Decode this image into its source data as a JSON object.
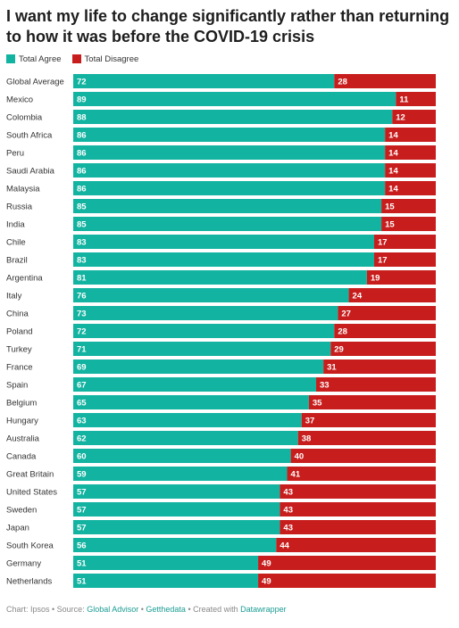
{
  "title": "I want my life to change significantly rather than returning to how it was before the COVID-19 crisis",
  "legend": [
    {
      "label": "Total Agree",
      "color": "#12b3a0"
    },
    {
      "label": "Total Disagree",
      "color": "#c71e1d"
    }
  ],
  "footer": {
    "prefix": "Chart: Ipsos • Source: ",
    "source1": "Global Advisor",
    "sep1": " • ",
    "source2": "Getthedata",
    "sep2": " • Created with ",
    "tool": "Datawrapper"
  },
  "chart_data": {
    "type": "bar",
    "orientation": "horizontal",
    "stacked": true,
    "title": "I want my life to change significantly rather than returning to how it was before the COVID-19 crisis",
    "xlim": [
      0,
      100
    ],
    "grid": false,
    "legend_position": "top-left",
    "categories": [
      "Global Average",
      "Mexico",
      "Colombia",
      "South Africa",
      "Peru",
      "Saudi Arabia",
      "Malaysia",
      "Russia",
      "India",
      "Chile",
      "Brazil",
      "Argentina",
      "Italy",
      "China",
      "Poland",
      "Turkey",
      "France",
      "Spain",
      "Belgium",
      "Hungary",
      "Australia",
      "Canada",
      "Great Britain",
      "United States",
      "Sweden",
      "Japan",
      "South Korea",
      "Germany",
      "Netherlands"
    ],
    "series": [
      {
        "name": "Total Agree",
        "color": "#12b3a0",
        "values": [
          72,
          89,
          88,
          86,
          86,
          86,
          86,
          85,
          85,
          83,
          83,
          81,
          76,
          73,
          72,
          71,
          69,
          67,
          65,
          63,
          62,
          60,
          59,
          57,
          57,
          57,
          56,
          51,
          51
        ]
      },
      {
        "name": "Total Disagree",
        "color": "#c71e1d",
        "values": [
          28,
          11,
          12,
          14,
          14,
          14,
          14,
          15,
          15,
          17,
          17,
          19,
          24,
          27,
          28,
          29,
          31,
          33,
          35,
          37,
          38,
          40,
          41,
          43,
          43,
          43,
          44,
          49,
          49
        ]
      }
    ]
  }
}
